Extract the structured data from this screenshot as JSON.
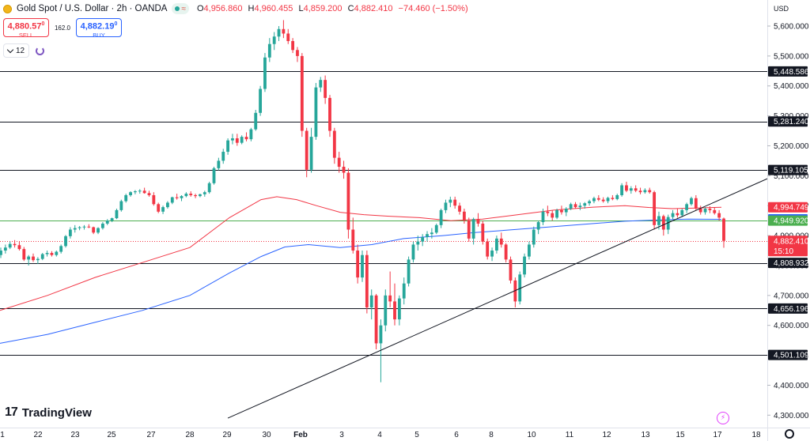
{
  "header": {
    "title": "Gold Spot / U.S. Dollar · 2h · OANDA",
    "ohlc": [
      {
        "k": "O",
        "v": "4,956.860"
      },
      {
        "k": "H",
        "v": "4,960.455"
      },
      {
        "k": "L",
        "v": "4,859.200"
      },
      {
        "k": "C",
        "v": "4,882.410"
      }
    ],
    "change": "−74.460 (−1.50%)"
  },
  "trade": {
    "sell_price": "4,880.57",
    "sell_sup": "0",
    "sell_label": "SELL",
    "spread": "162.0",
    "buy_price": "4,882.19",
    "buy_sup": "0",
    "buy_label": "BUY"
  },
  "collapse": {
    "count": "12"
  },
  "currency": "USD",
  "brand": "TradingView",
  "colors": {
    "up": "#26a69a",
    "down": "#f23645",
    "ema_red": "#f23645",
    "ema_blue": "#2962ff",
    "level_line": "#131722",
    "green_line": "#4caf50",
    "trend": "#131722"
  },
  "chart_data": {
    "type": "candlestick",
    "instrument": "Gold Spot / U.S. Dollar",
    "interval": "2h",
    "ylim": [
      4260,
      5650
    ],
    "y_ticks": [
      4300,
      4400,
      4500,
      4600,
      4700,
      4800,
      4900,
      5000,
      5100,
      5200,
      5300,
      5400,
      5500,
      5600
    ],
    "y_tick_labels": [
      "4,300.000",
      "4,400.000",
      "4,500.000",
      "4,600.000",
      "4,700.000",
      "4,800.000",
      "4,900.000",
      "5,000.000",
      "5,100.000",
      "5,200.000",
      "5,300.000",
      "5,400.000",
      "5,500.000",
      "5,600.000"
    ],
    "x_labels": [
      "1",
      "22",
      "23",
      "25",
      "27",
      "28",
      "29",
      "30",
      "Feb",
      "3",
      "4",
      "5",
      "6",
      "8",
      "10",
      "11",
      "12",
      "13",
      "15",
      "17",
      "18"
    ],
    "x_label_pos": [
      3,
      48,
      95,
      141,
      191,
      240,
      287,
      337,
      380,
      432,
      480,
      527,
      577,
      621,
      672,
      720,
      767,
      816,
      860,
      907,
      956
    ],
    "candles": [
      [
        4835,
        4860,
        4825,
        4850
      ],
      [
        4850,
        4870,
        4840,
        4860
      ],
      [
        4860,
        4880,
        4855,
        4872
      ],
      [
        4872,
        4885,
        4860,
        4868
      ],
      [
        4868,
        4880,
        4850,
        4855
      ],
      [
        4855,
        4862,
        4815,
        4820
      ],
      [
        4820,
        4835,
        4800,
        4830
      ],
      [
        4830,
        4840,
        4812,
        4818
      ],
      [
        4818,
        4828,
        4805,
        4822
      ],
      [
        4822,
        4842,
        4818,
        4838
      ],
      [
        4838,
        4850,
        4830,
        4842
      ],
      [
        4842,
        4848,
        4830,
        4835
      ],
      [
        4835,
        4850,
        4830,
        4846
      ],
      [
        4846,
        4870,
        4840,
        4865
      ],
      [
        4865,
        4902,
        4860,
        4898
      ],
      [
        4898,
        4928,
        4890,
        4920
      ],
      [
        4920,
        4935,
        4910,
        4925
      ],
      [
        4925,
        4932,
        4918,
        4928
      ],
      [
        4928,
        4935,
        4920,
        4930
      ],
      [
        4930,
        4938,
        4925,
        4928
      ],
      [
        4928,
        4930,
        4905,
        4910
      ],
      [
        4910,
        4928,
        4905,
        4925
      ],
      [
        4925,
        4945,
        4920,
        4940
      ],
      [
        4940,
        4955,
        4935,
        4950
      ],
      [
        4950,
        4960,
        4945,
        4958
      ],
      [
        4958,
        4990,
        4955,
        4985
      ],
      [
        4985,
        5020,
        4980,
        5015
      ],
      [
        5015,
        5040,
        5010,
        5035
      ],
      [
        5035,
        5048,
        5030,
        5045
      ],
      [
        5045,
        5052,
        5038,
        5048
      ],
      [
        5048,
        5055,
        5040,
        5050
      ],
      [
        5050,
        5060,
        5040,
        5042
      ],
      [
        5042,
        5050,
        5030,
        5035
      ],
      [
        5035,
        5045,
        5000,
        5005
      ],
      [
        5005,
        5010,
        4975,
        4980
      ],
      [
        4980,
        5000,
        4972,
        4995
      ],
      [
        4995,
        5015,
        4990,
        5010
      ],
      [
        5010,
        5030,
        5005,
        5028
      ],
      [
        5028,
        5040,
        5020,
        5025
      ],
      [
        5025,
        5035,
        5015,
        5032
      ],
      [
        5032,
        5045,
        5028,
        5040
      ],
      [
        5040,
        5048,
        5030,
        5035
      ],
      [
        5035,
        5040,
        5025,
        5032
      ],
      [
        5032,
        5040,
        5028,
        5038
      ],
      [
        5038,
        5050,
        5030,
        5045
      ],
      [
        5045,
        5080,
        5040,
        5075
      ],
      [
        5075,
        5130,
        5070,
        5125
      ],
      [
        5125,
        5160,
        5118,
        5150
      ],
      [
        5150,
        5190,
        5140,
        5180
      ],
      [
        5180,
        5225,
        5170,
        5218
      ],
      [
        5218,
        5240,
        5205,
        5225
      ],
      [
        5225,
        5240,
        5200,
        5210
      ],
      [
        5210,
        5235,
        5205,
        5230
      ],
      [
        5230,
        5245,
        5215,
        5222
      ],
      [
        5222,
        5260,
        5215,
        5255
      ],
      [
        5255,
        5320,
        5250,
        5310
      ],
      [
        5310,
        5400,
        5300,
        5390
      ],
      [
        5390,
        5510,
        5380,
        5495
      ],
      [
        5495,
        5560,
        5480,
        5540
      ],
      [
        5540,
        5580,
        5520,
        5565
      ],
      [
        5565,
        5600,
        5550,
        5590
      ],
      [
        5590,
        5620,
        5560,
        5575
      ],
      [
        5575,
        5590,
        5540,
        5550
      ],
      [
        5550,
        5560,
        5510,
        5520
      ],
      [
        5520,
        5530,
        5480,
        5500
      ],
      [
        5500,
        5510,
        5230,
        5250
      ],
      [
        5250,
        5260,
        5095,
        5120
      ],
      [
        5120,
        5260,
        5110,
        5230
      ],
      [
        5230,
        5410,
        5220,
        5395
      ],
      [
        5395,
        5430,
        5380,
        5420
      ],
      [
        5420,
        5435,
        5340,
        5360
      ],
      [
        5360,
        5370,
        5230,
        5250
      ],
      [
        5250,
        5260,
        5140,
        5160
      ],
      [
        5160,
        5180,
        5110,
        5130
      ],
      [
        5130,
        5150,
        5090,
        5110
      ],
      [
        5110,
        5125,
        4890,
        4920
      ],
      [
        4920,
        4960,
        4840,
        4850
      ],
      [
        4850,
        4870,
        4740,
        4760
      ],
      [
        4760,
        4850,
        4745,
        4835
      ],
      [
        4835,
        4850,
        4640,
        4660
      ],
      [
        4660,
        4720,
        4620,
        4700
      ],
      [
        4700,
        4705,
        4520,
        4540
      ],
      [
        4540,
        4620,
        4410,
        4600
      ],
      [
        4600,
        4720,
        4580,
        4700
      ],
      [
        4700,
        4780,
        4660,
        4680
      ],
      [
        4680,
        4740,
        4600,
        4620
      ],
      [
        4620,
        4700,
        4600,
        4690
      ],
      [
        4690,
        4760,
        4670,
        4740
      ],
      [
        4740,
        4830,
        4730,
        4820
      ],
      [
        4820,
        4880,
        4810,
        4870
      ],
      [
        4870,
        4900,
        4850,
        4880
      ],
      [
        4880,
        4905,
        4865,
        4895
      ],
      [
        4895,
        4915,
        4880,
        4905
      ],
      [
        4905,
        4925,
        4890,
        4910
      ],
      [
        4910,
        4940,
        4905,
        4935
      ],
      [
        4935,
        4990,
        4925,
        4985
      ],
      [
        4985,
        5020,
        4975,
        5010
      ],
      [
        5010,
        5030,
        4995,
        5020
      ],
      [
        5020,
        5030,
        4990,
        5000
      ],
      [
        5000,
        5010,
        4970,
        4980
      ],
      [
        4980,
        4990,
        4940,
        4950
      ],
      [
        4950,
        4960,
        4880,
        4890
      ],
      [
        4890,
        4960,
        4870,
        4955
      ],
      [
        4955,
        4975,
        4930,
        4940
      ],
      [
        4940,
        4950,
        4870,
        4880
      ],
      [
        4880,
        4890,
        4820,
        4830
      ],
      [
        4830,
        4860,
        4815,
        4850
      ],
      [
        4850,
        4900,
        4840,
        4890
      ],
      [
        4890,
        4910,
        4860,
        4870
      ],
      [
        4870,
        4875,
        4810,
        4820
      ],
      [
        4820,
        4830,
        4740,
        4750
      ],
      [
        4750,
        4760,
        4660,
        4680
      ],
      [
        4680,
        4780,
        4670,
        4770
      ],
      [
        4770,
        4840,
        4760,
        4830
      ],
      [
        4830,
        4880,
        4820,
        4870
      ],
      [
        4870,
        4930,
        4860,
        4920
      ],
      [
        4920,
        4950,
        4905,
        4945
      ],
      [
        4945,
        4990,
        4935,
        4980
      ],
      [
        4980,
        5000,
        4965,
        4975
      ],
      [
        4975,
        4985,
        4950,
        4960
      ],
      [
        4960,
        4990,
        4955,
        4985
      ],
      [
        4985,
        5000,
        4970,
        4978
      ],
      [
        4978,
        4995,
        4965,
        4990
      ],
      [
        4990,
        5010,
        4985,
        5005
      ],
      [
        5005,
        5012,
        4990,
        4995
      ],
      [
        4995,
        5010,
        4985,
        5000
      ],
      [
        5000,
        5012,
        4990,
        5008
      ],
      [
        5008,
        5020,
        5000,
        5015
      ],
      [
        5015,
        5030,
        5008,
        5025
      ],
      [
        5025,
        5035,
        5015,
        5020
      ],
      [
        5020,
        5028,
        5010,
        5015
      ],
      [
        5015,
        5030,
        5008,
        5026
      ],
      [
        5026,
        5035,
        5018,
        5022
      ],
      [
        5022,
        5040,
        5018,
        5035
      ],
      [
        5035,
        5075,
        5030,
        5068
      ],
      [
        5068,
        5080,
        5045,
        5050
      ],
      [
        5050,
        5065,
        5040,
        5058
      ],
      [
        5058,
        5068,
        5045,
        5050
      ],
      [
        5050,
        5060,
        5038,
        5045
      ],
      [
        5045,
        5058,
        5040,
        5052
      ],
      [
        5052,
        5060,
        5040,
        5045
      ],
      [
        5045,
        5050,
        4920,
        4935
      ],
      [
        4935,
        4980,
        4920,
        4965
      ],
      [
        4965,
        4970,
        4900,
        4920
      ],
      [
        4920,
        4970,
        4905,
        4962
      ],
      [
        4962,
        4985,
        4955,
        4975
      ],
      [
        4975,
        4990,
        4960,
        4968
      ],
      [
        4968,
        4990,
        4962,
        4985
      ],
      [
        4985,
        5010,
        4975,
        5005
      ],
      [
        5005,
        5030,
        5000,
        5025
      ],
      [
        5025,
        5035,
        4985,
        4990
      ],
      [
        4990,
        5000,
        4970,
        4978
      ],
      [
        4978,
        4995,
        4970,
        4990
      ],
      [
        4990,
        4998,
        4975,
        4985
      ],
      [
        4985,
        4995,
        4970,
        4975
      ],
      [
        4975,
        4985,
        4950,
        4960
      ],
      [
        4956.86,
        4960.455,
        4859.2,
        4882.41
      ]
    ],
    "ema_red": {
      "name": "EMA",
      "points": [
        [
          0,
          4650
        ],
        [
          60,
          4700
        ],
        [
          120,
          4760
        ],
        [
          180,
          4810
        ],
        [
          240,
          4860
        ],
        [
          290,
          4960
        ],
        [
          330,
          5020
        ],
        [
          350,
          5030
        ],
        [
          375,
          5020
        ],
        [
          400,
          5000
        ],
        [
          430,
          4978
        ],
        [
          460,
          4970
        ],
        [
          490,
          4965
        ],
        [
          530,
          4960
        ],
        [
          570,
          4950
        ],
        [
          610,
          4955
        ],
        [
          650,
          4968
        ],
        [
          700,
          4985
        ],
        [
          750,
          4995
        ],
        [
          790,
          5000
        ],
        [
          820,
          4994
        ],
        [
          850,
          4990
        ],
        [
          880,
          4992
        ],
        [
          912,
          4994.749
        ]
      ]
    },
    "ema_blue": {
      "name": "EMA",
      "points": [
        [
          0,
          4540
        ],
        [
          60,
          4570
        ],
        [
          120,
          4610
        ],
        [
          180,
          4650
        ],
        [
          240,
          4700
        ],
        [
          290,
          4775
        ],
        [
          330,
          4830
        ],
        [
          360,
          4862
        ],
        [
          390,
          4870
        ],
        [
          430,
          4860
        ],
        [
          470,
          4870
        ],
        [
          510,
          4890
        ],
        [
          560,
          4900
        ],
        [
          600,
          4910
        ],
        [
          650,
          4920
        ],
        [
          700,
          4930
        ],
        [
          750,
          4940
        ],
        [
          790,
          4948
        ],
        [
          830,
          4952
        ],
        [
          870,
          4955
        ],
        [
          912,
          4954.399
        ]
      ]
    },
    "horizontal_levels": [
      5448.586,
      5281.24,
      5119.105,
      4808.932,
      4656.196,
      4501.109
    ],
    "green_level": 4949.92,
    "current_price": 4882.41,
    "trendline": [
      [
        288,
        4290
      ],
      [
        970,
        5090
      ]
    ],
    "price_tags": [
      {
        "label": "5,448.586",
        "value": 5448.586,
        "bg": "#131722",
        "fg": "#ffffff"
      },
      {
        "label": "5,281.240",
        "value": 5281.24,
        "bg": "#131722",
        "fg": "#ffffff"
      },
      {
        "label": "5,119.105",
        "value": 5119.105,
        "bg": "#131722",
        "fg": "#ffffff"
      },
      {
        "label": "4,994.749",
        "value": 4994.749,
        "bg": "#f23645",
        "fg": "#ffffff"
      },
      {
        "label": "4,954.399",
        "value": 4954.399,
        "bg": "#2962ff",
        "fg": "#ffffff"
      },
      {
        "label": "4,949.920",
        "value": 4949.92,
        "bg": "#4caf50",
        "fg": "#ffffff"
      },
      {
        "label": "4,808.932",
        "value": 4808.932,
        "bg": "#131722",
        "fg": "#ffffff"
      },
      {
        "label": "4,656.196",
        "value": 4656.196,
        "bg": "#131722",
        "fg": "#ffffff"
      },
      {
        "label": "4,501.109",
        "value": 4501.109,
        "bg": "#131722",
        "fg": "#ffffff"
      }
    ],
    "current_tag": {
      "label": "4,882.410",
      "countdown": "15:10",
      "value": 4882.41,
      "bg": "#f23645",
      "fg": "#ffffff"
    }
  }
}
